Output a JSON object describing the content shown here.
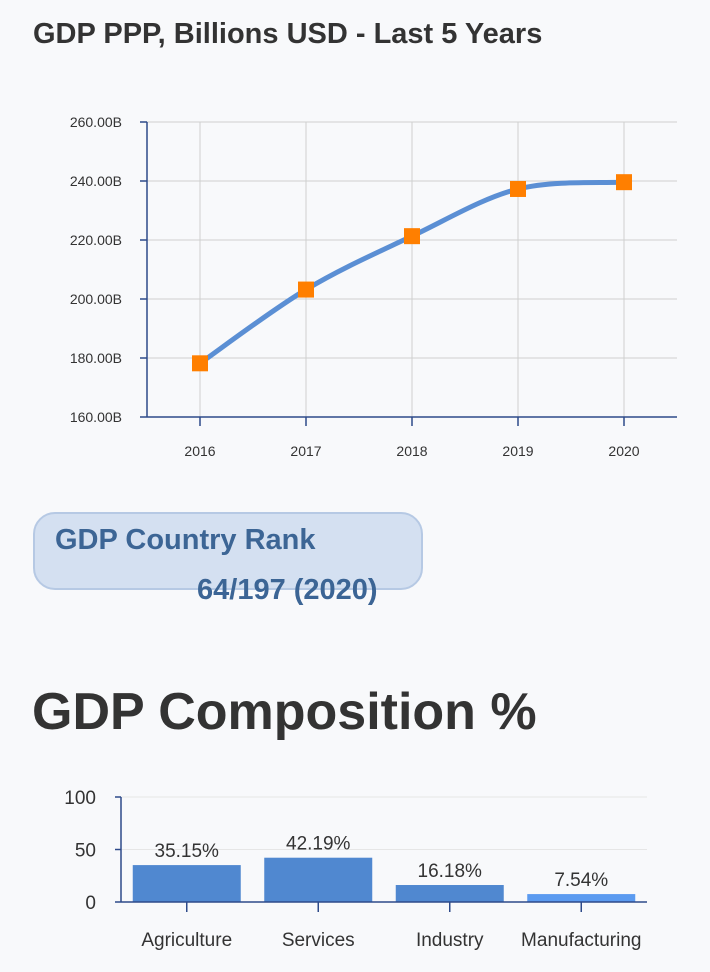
{
  "title": "GDP PPP, Billions USD - Last 5 Years",
  "rank": {
    "label": "GDP Country Rank",
    "value": "64/197 (2020)"
  },
  "composition_title": "GDP Composition %",
  "colors": {
    "line": "#5b8fd4",
    "marker": "#ff7f00",
    "bar": "#5088d0",
    "bar_highlight": "#5b9bf0",
    "axis": "#2e4a8a",
    "rank_bg": "#d4e0f1",
    "rank_text": "#3c6595"
  },
  "chart_data": [
    {
      "type": "line",
      "title": "GDP PPP, Billions USD - Last 5 Years",
      "x": [
        "2016",
        "2017",
        "2018",
        "2019",
        "2020"
      ],
      "values": [
        178.2,
        203.2,
        221.3,
        237.3,
        239.6
      ],
      "ylim": [
        160,
        260
      ],
      "yticks": [
        160,
        180,
        200,
        220,
        240,
        260
      ],
      "ytick_labels": [
        "160.00B",
        "180.00B",
        "200.00B",
        "220.00B",
        "240.00B",
        "260.00B"
      ],
      "grid": true,
      "marker": "square"
    },
    {
      "type": "bar",
      "title": "GDP Composition %",
      "categories": [
        "Agriculture",
        "Services",
        "Industry",
        "Manufacturing"
      ],
      "values": [
        35.15,
        42.19,
        16.18,
        7.54
      ],
      "data_labels": [
        "35.15%",
        "42.19%",
        "16.18%",
        "7.54%"
      ],
      "ylim": [
        0,
        100
      ],
      "yticks": [
        0,
        50,
        100
      ],
      "ytick_labels": [
        "0",
        "50",
        "100"
      ],
      "grid": true
    }
  ]
}
